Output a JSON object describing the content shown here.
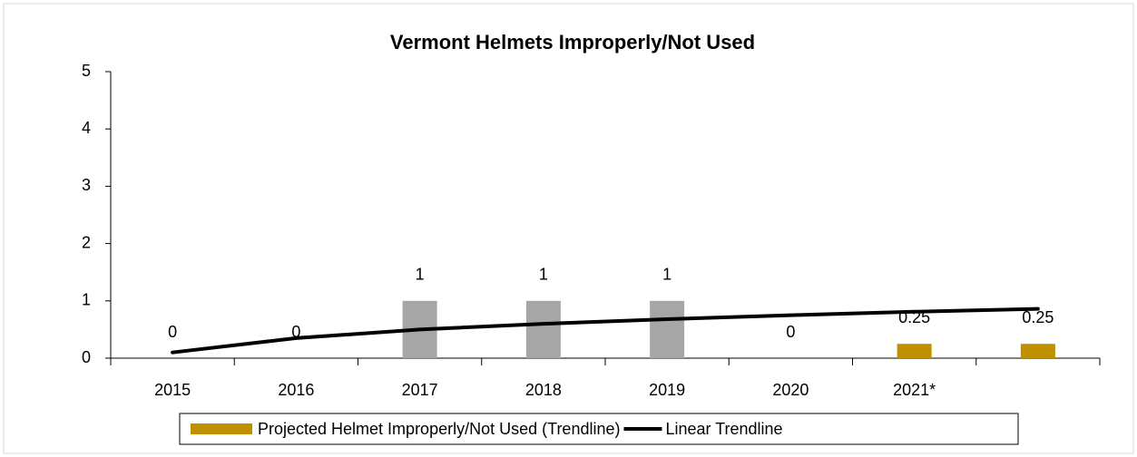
{
  "chart_data": {
    "type": "bar",
    "title": "Vermont Helmets Improperly/Not Used",
    "categories": [
      "2015",
      "2016",
      "2017",
      "2018",
      "2019",
      "2020",
      "2021*",
      null
    ],
    "series": [
      {
        "name": "Projected Helmet Improperly/Not Used (Trendline)",
        "color": "#bf9000",
        "values": [
          0,
          0,
          1,
          1,
          1,
          0,
          0.25,
          0.25
        ]
      },
      {
        "name": "Linear Trendline",
        "type": "line",
        "color": "#000000",
        "values": [
          0.1,
          0.35,
          0.5,
          0.6,
          0.68,
          0.75,
          0.81,
          0.86
        ]
      }
    ],
    "bar_colors": [
      "#a6a6a6",
      "#a6a6a6",
      "#a6a6a6",
      "#a6a6a6",
      "#a6a6a6",
      "#a6a6a6",
      "#bf9000",
      "#bf9000"
    ],
    "ylim": [
      0,
      5
    ],
    "yticks": [
      0,
      1,
      2,
      3,
      4,
      5
    ],
    "grid": false,
    "legend": "bottom"
  }
}
